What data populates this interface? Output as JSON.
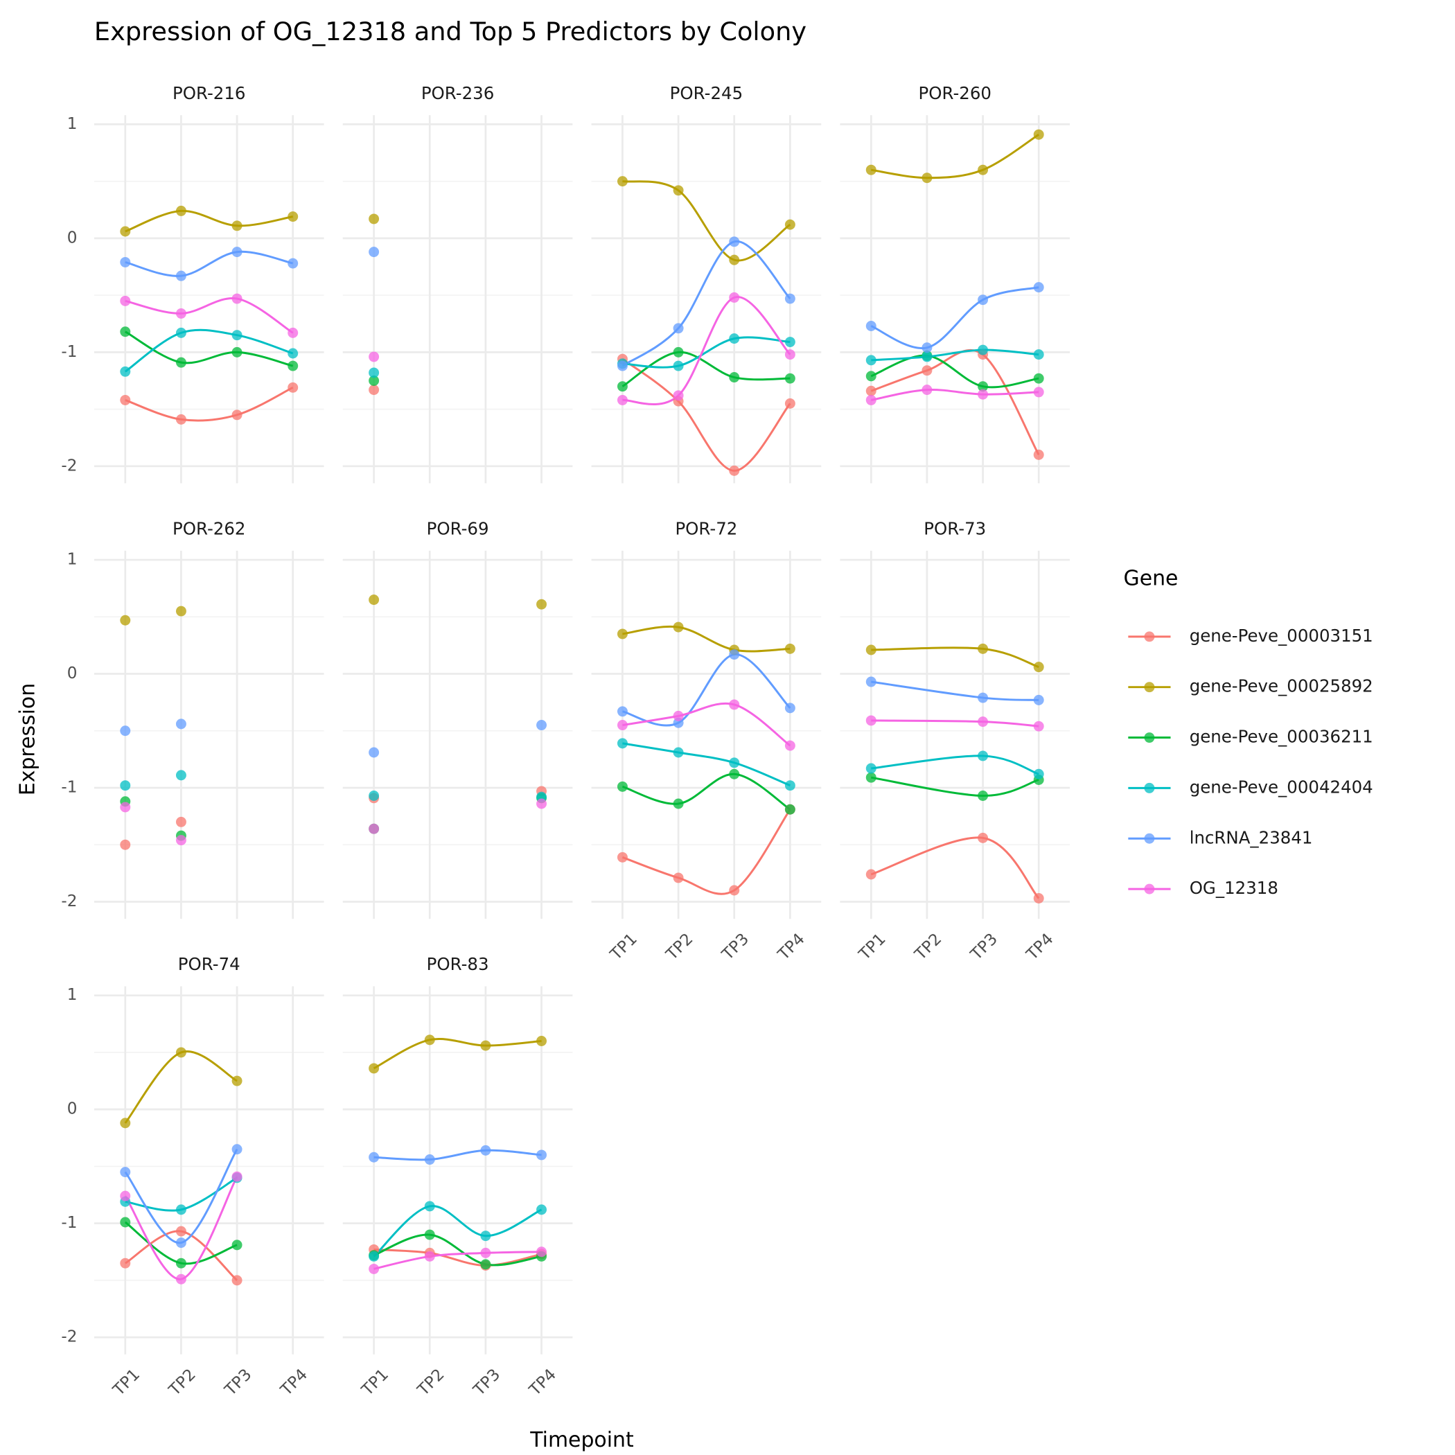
{
  "chart_data": {
    "type": "line",
    "title": "Expression of OG_12318 and Top 5 Predictors by Colony",
    "x_label": "Timepoint",
    "y_label": "Expression",
    "legend_title": "Gene",
    "legend_position": "right",
    "grid": true,
    "categories": [
      "TP1",
      "TP2",
      "TP3",
      "TP4"
    ],
    "ylim": [
      -2.15,
      1.08
    ],
    "yticks": [
      -2,
      -1,
      0,
      1
    ],
    "series": [
      {
        "name": "gene-Peve_00003151",
        "color": "#F8766D"
      },
      {
        "name": "gene-Peve_00025892",
        "color": "#B79F00"
      },
      {
        "name": "gene-Peve_00036211",
        "color": "#00BA38"
      },
      {
        "name": "gene-Peve_00042404",
        "color": "#00BFC4"
      },
      {
        "name": "lncRNA_23841",
        "color": "#619CFF"
      },
      {
        "name": "OG_12318",
        "color": "#F564E3"
      }
    ],
    "facets": [
      {
        "title": "POR-216",
        "series": [
          {
            "values": [
              -1.42,
              -1.59,
              -1.55,
              -1.31
            ]
          },
          {
            "values": [
              0.06,
              0.24,
              0.11,
              0.19
            ]
          },
          {
            "values": [
              -0.82,
              -1.09,
              -1.0,
              -1.12
            ]
          },
          {
            "values": [
              -1.17,
              -0.83,
              -0.85,
              -1.01
            ]
          },
          {
            "values": [
              -0.21,
              -0.33,
              -0.12,
              -0.22
            ]
          },
          {
            "values": [
              -0.55,
              -0.66,
              -0.53,
              -0.83
            ]
          }
        ]
      },
      {
        "title": "POR-236",
        "series": [
          {
            "values": [
              -1.33,
              null,
              null,
              null
            ]
          },
          {
            "values": [
              0.17,
              null,
              null,
              null
            ]
          },
          {
            "values": [
              -1.25,
              null,
              null,
              null
            ]
          },
          {
            "values": [
              -1.18,
              null,
              null,
              null
            ]
          },
          {
            "values": [
              -0.12,
              null,
              null,
              null
            ]
          },
          {
            "values": [
              -1.04,
              null,
              null,
              null
            ]
          }
        ]
      },
      {
        "title": "POR-245",
        "series": [
          {
            "values": [
              -1.06,
              -1.43,
              -2.04,
              -1.45
            ]
          },
          {
            "values": [
              0.5,
              0.42,
              -0.19,
              0.12
            ]
          },
          {
            "values": [
              -1.3,
              -1.0,
              -1.22,
              -1.23
            ]
          },
          {
            "values": [
              -1.1,
              -1.12,
              -0.88,
              -0.91
            ]
          },
          {
            "values": [
              -1.12,
              -0.79,
              -0.03,
              -0.53
            ]
          },
          {
            "values": [
              -1.42,
              -1.38,
              -0.52,
              -1.02
            ]
          }
        ]
      },
      {
        "title": "POR-260",
        "series": [
          {
            "values": [
              -1.34,
              -1.16,
              -1.02,
              -1.9
            ]
          },
          {
            "values": [
              0.6,
              0.53,
              0.6,
              0.91
            ]
          },
          {
            "values": [
              -1.21,
              -1.03,
              -1.3,
              -1.23
            ]
          },
          {
            "values": [
              -1.07,
              -1.04,
              -0.98,
              -1.02
            ]
          },
          {
            "values": [
              -0.77,
              -0.96,
              -0.54,
              -0.43
            ]
          },
          {
            "values": [
              -1.42,
              -1.33,
              -1.37,
              -1.35
            ]
          }
        ]
      },
      {
        "title": "POR-262",
        "series": [
          {
            "values": [
              -1.5,
              -1.3,
              null,
              null
            ]
          },
          {
            "values": [
              0.47,
              0.55,
              null,
              null
            ]
          },
          {
            "values": [
              -1.12,
              -1.42,
              null,
              null
            ]
          },
          {
            "values": [
              -0.98,
              -0.89,
              null,
              null
            ]
          },
          {
            "values": [
              -0.5,
              -0.44,
              null,
              null
            ]
          },
          {
            "values": [
              -1.17,
              -1.46,
              null,
              null
            ]
          }
        ]
      },
      {
        "title": "POR-69",
        "series": [
          {
            "values": [
              -1.09,
              null,
              null,
              -1.03
            ]
          },
          {
            "values": [
              0.65,
              null,
              null,
              0.61
            ]
          },
          {
            "values": [
              -1.36,
              null,
              null,
              -1.09
            ]
          },
          {
            "values": [
              -1.07,
              null,
              null,
              -1.08
            ]
          },
          {
            "values": [
              -0.69,
              null,
              null,
              -0.45
            ]
          },
          {
            "values": [
              -1.36,
              null,
              null,
              -1.14
            ]
          }
        ]
      },
      {
        "title": "POR-72",
        "series": [
          {
            "values": [
              -1.61,
              -1.79,
              -1.9,
              -1.19
            ]
          },
          {
            "values": [
              0.35,
              0.41,
              0.21,
              0.22
            ]
          },
          {
            "values": [
              -0.99,
              -1.14,
              -0.88,
              -1.19
            ]
          },
          {
            "values": [
              -0.61,
              -0.69,
              -0.78,
              -0.98
            ]
          },
          {
            "values": [
              -0.33,
              -0.43,
              0.17,
              -0.3
            ]
          },
          {
            "values": [
              -0.45,
              -0.37,
              -0.27,
              -0.63
            ]
          }
        ]
      },
      {
        "title": "POR-73",
        "series": [
          {
            "values": [
              -1.76,
              null,
              -1.44,
              -1.97
            ]
          },
          {
            "values": [
              0.21,
              null,
              0.22,
              0.06
            ]
          },
          {
            "values": [
              -0.91,
              null,
              -1.07,
              -0.93
            ]
          },
          {
            "values": [
              -0.83,
              null,
              -0.72,
              -0.88
            ]
          },
          {
            "values": [
              -0.07,
              null,
              -0.21,
              -0.23
            ]
          },
          {
            "values": [
              -0.41,
              null,
              -0.42,
              -0.46
            ]
          }
        ]
      },
      {
        "title": "POR-74",
        "series": [
          {
            "values": [
              -1.35,
              -1.07,
              -1.5,
              null
            ]
          },
          {
            "values": [
              -0.12,
              0.5,
              0.25,
              null
            ]
          },
          {
            "values": [
              -0.99,
              -1.35,
              -1.19,
              null
            ]
          },
          {
            "values": [
              -0.81,
              -0.88,
              -0.6,
              null
            ]
          },
          {
            "values": [
              -0.55,
              -1.17,
              -0.35,
              null
            ]
          },
          {
            "values": [
              -0.76,
              -1.49,
              -0.59,
              null
            ]
          }
        ]
      },
      {
        "title": "POR-83",
        "series": [
          {
            "values": [
              -1.23,
              -1.26,
              -1.37,
              -1.27
            ]
          },
          {
            "values": [
              0.36,
              0.61,
              0.56,
              0.6
            ]
          },
          {
            "values": [
              -1.28,
              -1.1,
              -1.36,
              -1.29
            ]
          },
          {
            "values": [
              -1.29,
              -0.85,
              -1.11,
              -0.88
            ]
          },
          {
            "values": [
              -0.42,
              -0.44,
              -0.36,
              -0.4
            ]
          },
          {
            "values": [
              -1.4,
              -1.29,
              -1.26,
              -1.25
            ]
          }
        ]
      }
    ]
  }
}
